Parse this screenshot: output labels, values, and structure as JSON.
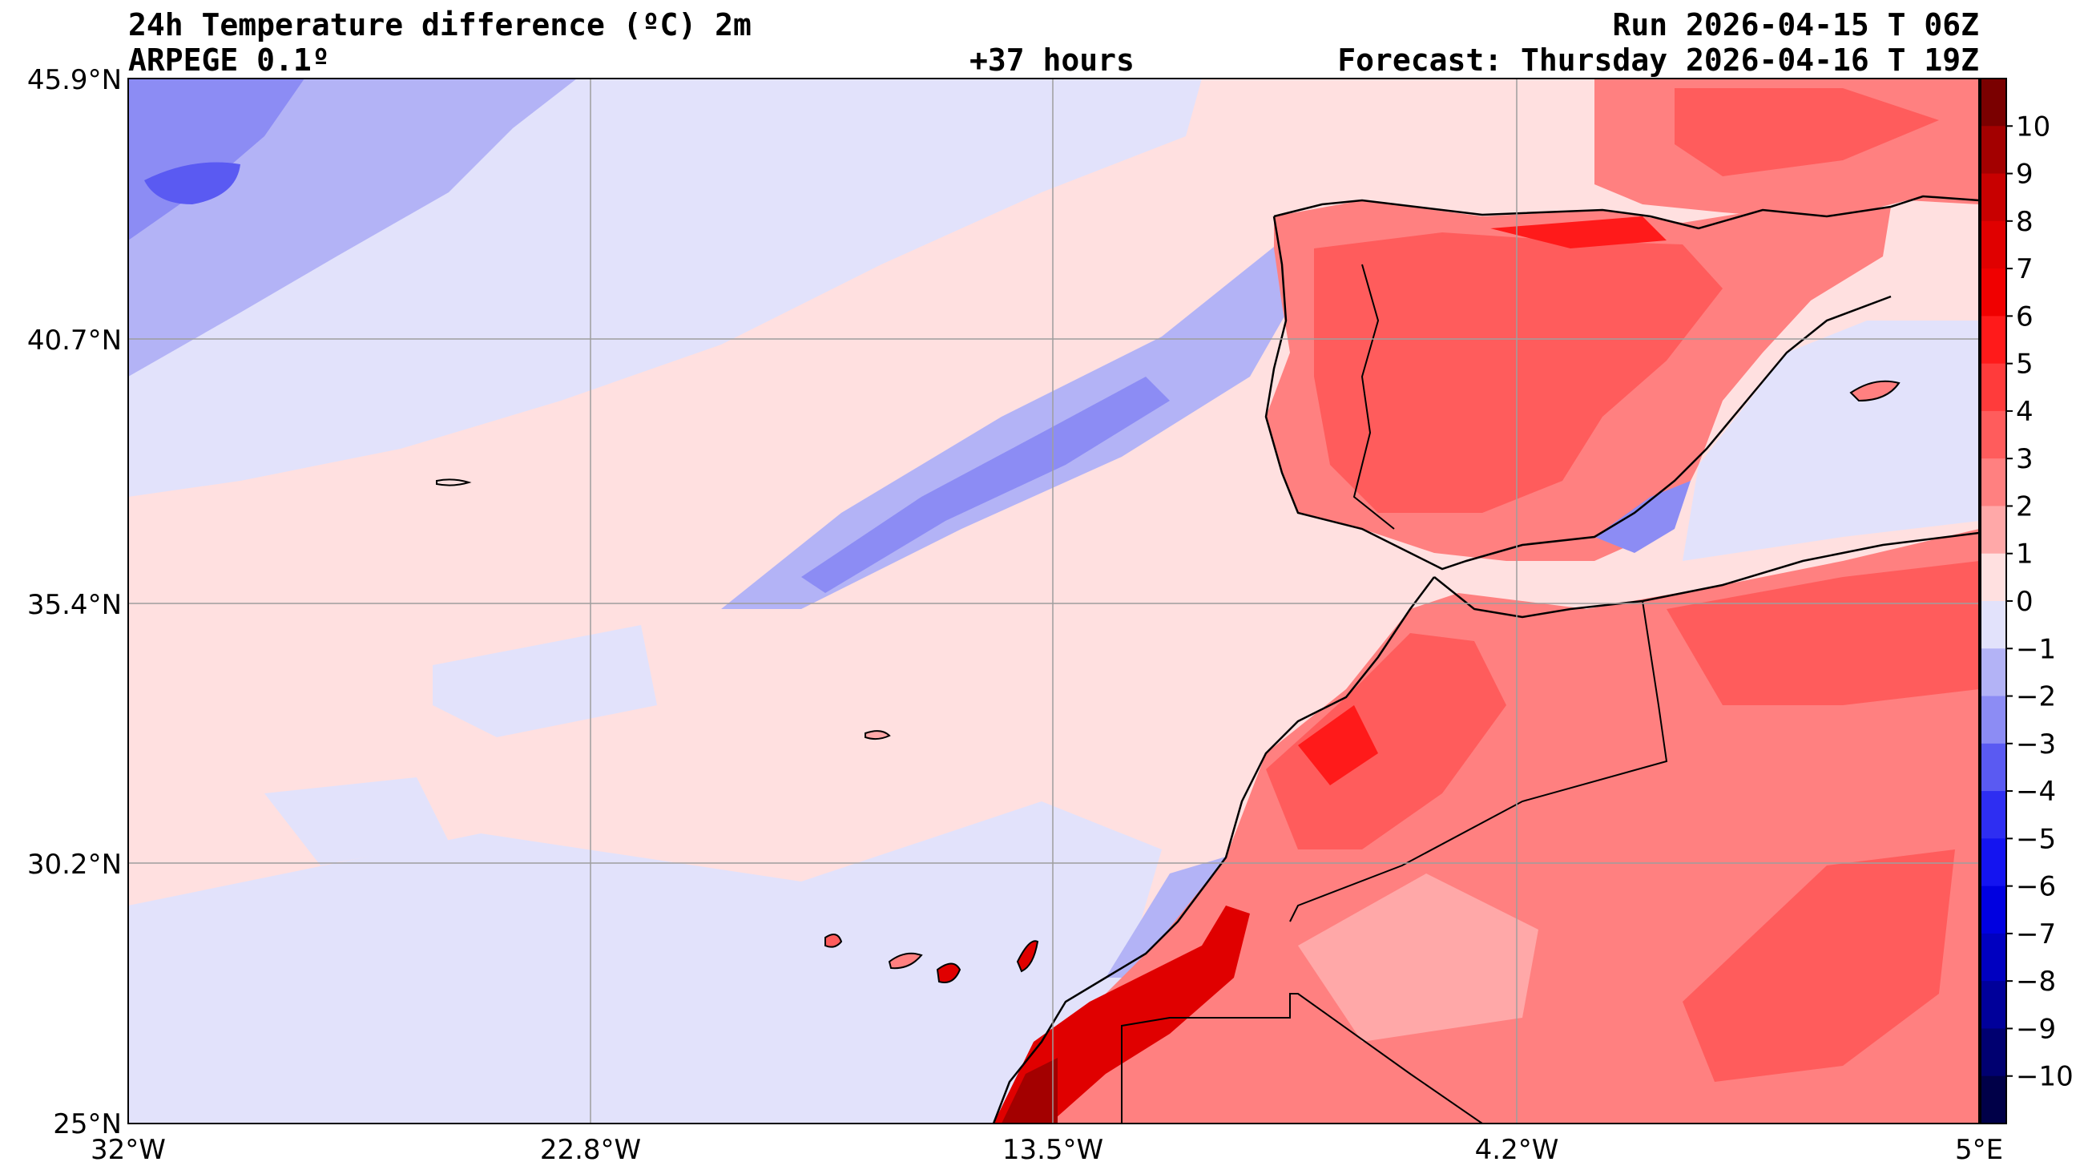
{
  "header": {
    "title": "24h Temperature difference (ºC) 2m",
    "model": "ARPEGE 0.1º",
    "lead": "+37 hours",
    "run": "Run 2026-04-15 T 06Z",
    "forecast": "Forecast: Thursday 2026-04-16 T 19Z"
  },
  "map": {
    "lat_ticks": [
      "45.9°N",
      "40.7°N",
      "35.4°N",
      "30.2°N",
      "25°N"
    ],
    "lon_ticks": [
      "32°W",
      "22.8°W",
      "13.5°W",
      "4.2°W",
      "5°E"
    ],
    "extent": {
      "lon": [
        -32,
        5
      ],
      "lat": [
        25,
        45.9
      ]
    },
    "grid": true,
    "coastlines": true,
    "borders": true
  },
  "colorbar": {
    "labels": [
      "10",
      "9",
      "8",
      "7",
      "6",
      "5",
      "4",
      "3",
      "2",
      "1",
      "0",
      "−1",
      "−2",
      "−3",
      "−4",
      "−5",
      "−6",
      "−7",
      "−8",
      "−9",
      "−10"
    ],
    "colors": [
      "#7a0000",
      "#a30000",
      "#c80000",
      "#e00000",
      "#f00000",
      "#ff1a1a",
      "#ff3b3b",
      "#ff5c5c",
      "#ff8080",
      "#ffa8a8",
      "#ffe0e0",
      "#e2e2fb",
      "#b3b3f6",
      "#8c8cf4",
      "#5a5af2",
      "#2e2ef2",
      "#1414f0",
      "#0000e0",
      "#0000c0",
      "#00009a",
      "#000070",
      "#000048"
    ],
    "position": "right"
  }
}
